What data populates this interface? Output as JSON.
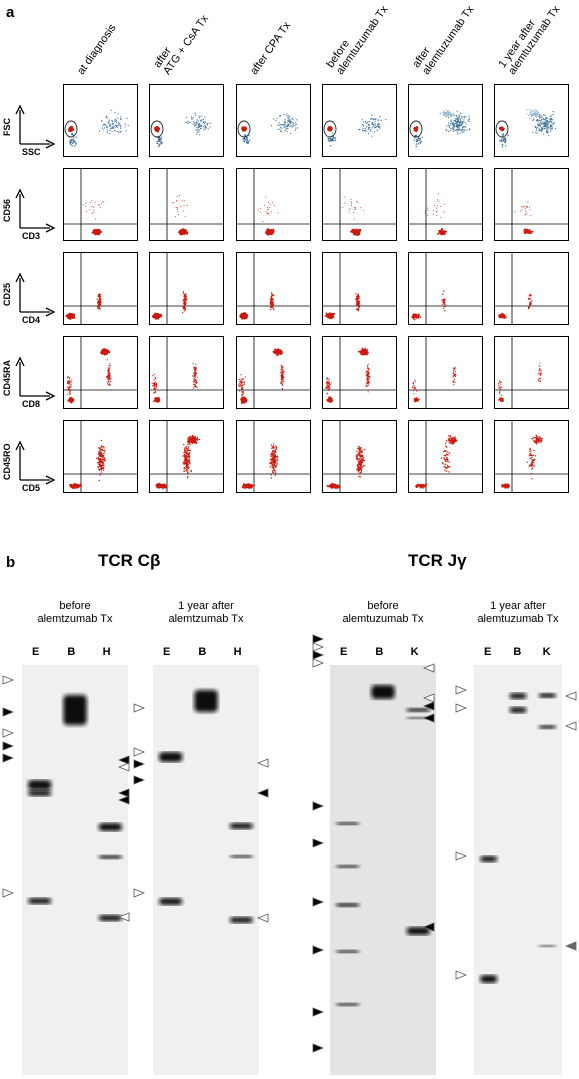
{
  "panel_a": {
    "letter": "a",
    "columns": [
      {
        "label": "at diagnosis"
      },
      {
        "label": "after\nATG + CsA Tx"
      },
      {
        "label": "after CPA Tx"
      },
      {
        "label": "before\nalemtuzumab Tx"
      },
      {
        "label": "after\nalemtuzumab Tx"
      },
      {
        "label": "1 year after\nalemtuzumab Tx"
      }
    ],
    "rows": [
      {
        "y_label": "FSC",
        "x_label": "SSC"
      },
      {
        "y_label": "CD56",
        "x_label": "CD3"
      },
      {
        "y_label": "CD25",
        "x_label": "CD4"
      },
      {
        "y_label": "CD45RA",
        "x_label": "CD8"
      },
      {
        "y_label": "CD45RO",
        "x_label": "CD5"
      }
    ],
    "colors": {
      "events": "#cc1a0f",
      "background": "#3a6f9a"
    }
  },
  "panel_b": {
    "letter": "b",
    "titles": {
      "tcr_cb": "TCR Cβ",
      "tcr_jg": "TCR Jγ"
    },
    "blots": [
      {
        "subtitle": "before\nalemtzumab Tx",
        "lanes": [
          "E",
          "B",
          "H"
        ]
      },
      {
        "subtitle": "1 year after\nalemtzumab Tx",
        "lanes": [
          "E",
          "B",
          "H"
        ]
      },
      {
        "subtitle": "before\nalemtuzumab Tx",
        "lanes": [
          "E",
          "B",
          "K"
        ]
      },
      {
        "subtitle": "1 year after\nalemtuzumab Tx",
        "lanes": [
          "E",
          "B",
          "K"
        ]
      }
    ]
  }
}
